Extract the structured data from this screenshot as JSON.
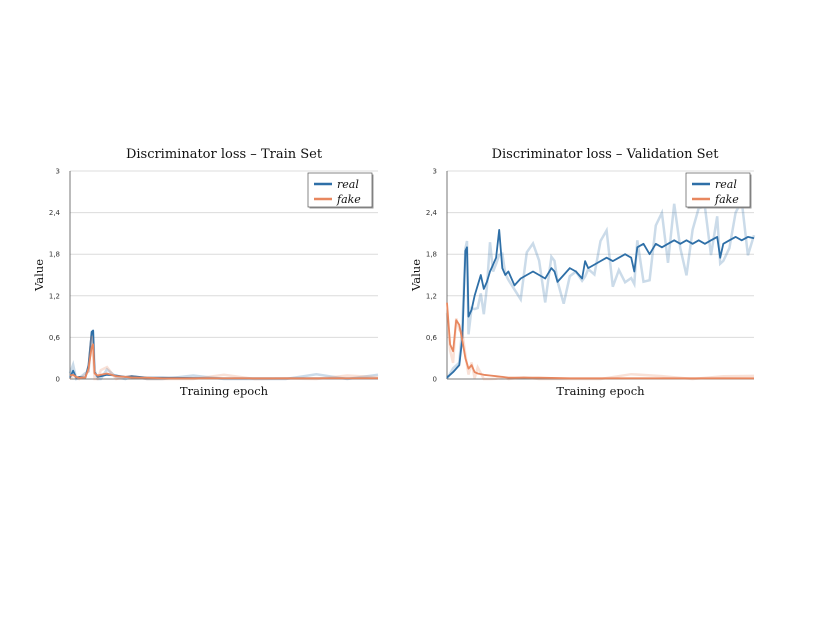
{
  "colors": {
    "real": "#2e6fa7",
    "fake": "#e8875f",
    "grid": "#dcdcdc",
    "axis": "#555555"
  },
  "chart_data": [
    {
      "type": "line",
      "title": "Discriminator loss – Train Set",
      "xlabel": "Training epoch",
      "ylabel": "Value",
      "xlim": [
        0,
        100
      ],
      "ylim": [
        0,
        3
      ],
      "yticks": [
        "0",
        "0,6",
        "1,2",
        "1,8",
        "2,4",
        "3"
      ],
      "grid": true,
      "legend_position": "top-right",
      "series": [
        {
          "name": "real",
          "x": [
            0,
            1,
            2,
            3,
            5,
            6,
            7,
            7.5,
            8,
            9,
            10,
            12,
            15,
            18,
            20,
            25,
            30,
            40,
            50,
            60,
            70,
            80,
            90,
            100
          ],
          "values": [
            0.02,
            0.12,
            0.02,
            0.03,
            0.02,
            0.2,
            0.68,
            0.7,
            0.1,
            0.03,
            0.04,
            0.06,
            0.05,
            0.03,
            0.04,
            0.02,
            0.02,
            0.015,
            0.01,
            0.01,
            0.01,
            0.01,
            0.01,
            0.01
          ]
        },
        {
          "name": "fake",
          "x": [
            0,
            1,
            2,
            3,
            5,
            6,
            7,
            7.5,
            8,
            9,
            10,
            12,
            15,
            18,
            20,
            25,
            30,
            40,
            50,
            60,
            70,
            80,
            90,
            100
          ],
          "values": [
            0.05,
            0.06,
            0.03,
            0.02,
            0.02,
            0.15,
            0.45,
            0.5,
            0.08,
            0.05,
            0.06,
            0.08,
            0.04,
            0.03,
            0.02,
            0.02,
            0.01,
            0.01,
            0.01,
            0.01,
            0.01,
            0.01,
            0.01,
            0.01
          ]
        }
      ]
    },
    {
      "type": "line",
      "title": "Discriminator loss – Validation Set",
      "xlabel": "Training epoch",
      "ylabel": "Value",
      "xlim": [
        0,
        100
      ],
      "ylim": [
        0,
        3
      ],
      "yticks": [
        "0",
        "0,6",
        "1,2",
        "1,8",
        "2,4",
        "3"
      ],
      "grid": true,
      "legend_position": "top-right",
      "series": [
        {
          "name": "real",
          "x": [
            0,
            2,
            4,
            5,
            6,
            6.5,
            7,
            8,
            9,
            10,
            11,
            12,
            13,
            14,
            15,
            16,
            17,
            18,
            19,
            20,
            22,
            24,
            26,
            28,
            30,
            32,
            34,
            35,
            36,
            38,
            40,
            42,
            44,
            45,
            46,
            48,
            50,
            52,
            54,
            56,
            58,
            60,
            61,
            62,
            64,
            66,
            68,
            70,
            72,
            74,
            76,
            78,
            80,
            82,
            84,
            86,
            88,
            89,
            90,
            92,
            94,
            96,
            98,
            100
          ],
          "values": [
            0.02,
            0.1,
            0.2,
            0.6,
            1.85,
            1.9,
            0.9,
            1.0,
            1.2,
            1.35,
            1.5,
            1.3,
            1.4,
            1.55,
            1.65,
            1.75,
            2.15,
            1.6,
            1.5,
            1.55,
            1.35,
            1.45,
            1.5,
            1.55,
            1.5,
            1.45,
            1.6,
            1.55,
            1.4,
            1.5,
            1.6,
            1.55,
            1.45,
            1.7,
            1.6,
            1.65,
            1.7,
            1.75,
            1.7,
            1.75,
            1.8,
            1.75,
            1.55,
            1.9,
            1.95,
            1.8,
            1.95,
            1.9,
            1.95,
            2.0,
            1.95,
            2.0,
            1.95,
            2.0,
            1.95,
            2.0,
            2.05,
            1.75,
            1.95,
            2.0,
            2.05,
            2.0,
            2.05,
            2.03
          ]
        },
        {
          "name": "fake",
          "x": [
            0,
            1,
            2,
            3,
            4,
            5,
            6,
            7,
            8,
            9,
            10,
            12,
            14,
            16,
            18,
            20,
            25,
            30,
            40,
            50,
            60,
            70,
            80,
            90,
            100
          ],
          "values": [
            1.1,
            0.5,
            0.4,
            0.85,
            0.78,
            0.55,
            0.3,
            0.15,
            0.2,
            0.1,
            0.08,
            0.06,
            0.05,
            0.04,
            0.03,
            0.02,
            0.02,
            0.02,
            0.01,
            0.01,
            0.01,
            0.01,
            0.01,
            0.01,
            0.01
          ]
        }
      ]
    }
  ]
}
